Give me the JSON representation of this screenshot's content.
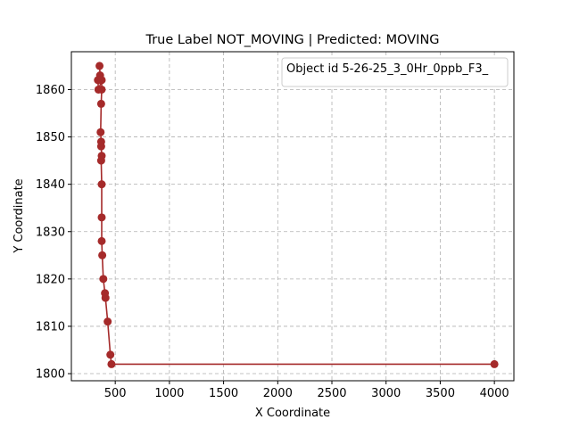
{
  "chart_data": {
    "type": "line",
    "title": "True Label NOT_MOVING | Predicted: MOVING",
    "xlabel": "X Coordinate",
    "ylabel": "Y Coordinate",
    "xlim": [
      95,
      4180
    ],
    "ylim": [
      1798.5,
      1868
    ],
    "xticks": [
      500,
      1000,
      1500,
      2000,
      2500,
      3000,
      3500,
      4000
    ],
    "yticks": [
      1800,
      1810,
      1820,
      1830,
      1840,
      1850,
      1860
    ],
    "grid": true,
    "legend_position": "top-right",
    "series": [
      {
        "name": "Object id 5-26-25_3_0Hr_0ppb_F3_",
        "color": "#a52a2a",
        "marker": "circle",
        "x": [
          355,
          360,
          340,
          345,
          375,
          375,
          370,
          365,
          370,
          370,
          375,
          370,
          375,
          375,
          375,
          380,
          390,
          405,
          410,
          430,
          455,
          465,
          4000
        ],
        "y": [
          1865,
          1863,
          1862,
          1860,
          1862,
          1860,
          1857,
          1851,
          1849,
          1848,
          1846,
          1845,
          1840,
          1833,
          1828,
          1825,
          1820,
          1817,
          1816,
          1811,
          1804,
          1802,
          1802
        ]
      }
    ]
  }
}
